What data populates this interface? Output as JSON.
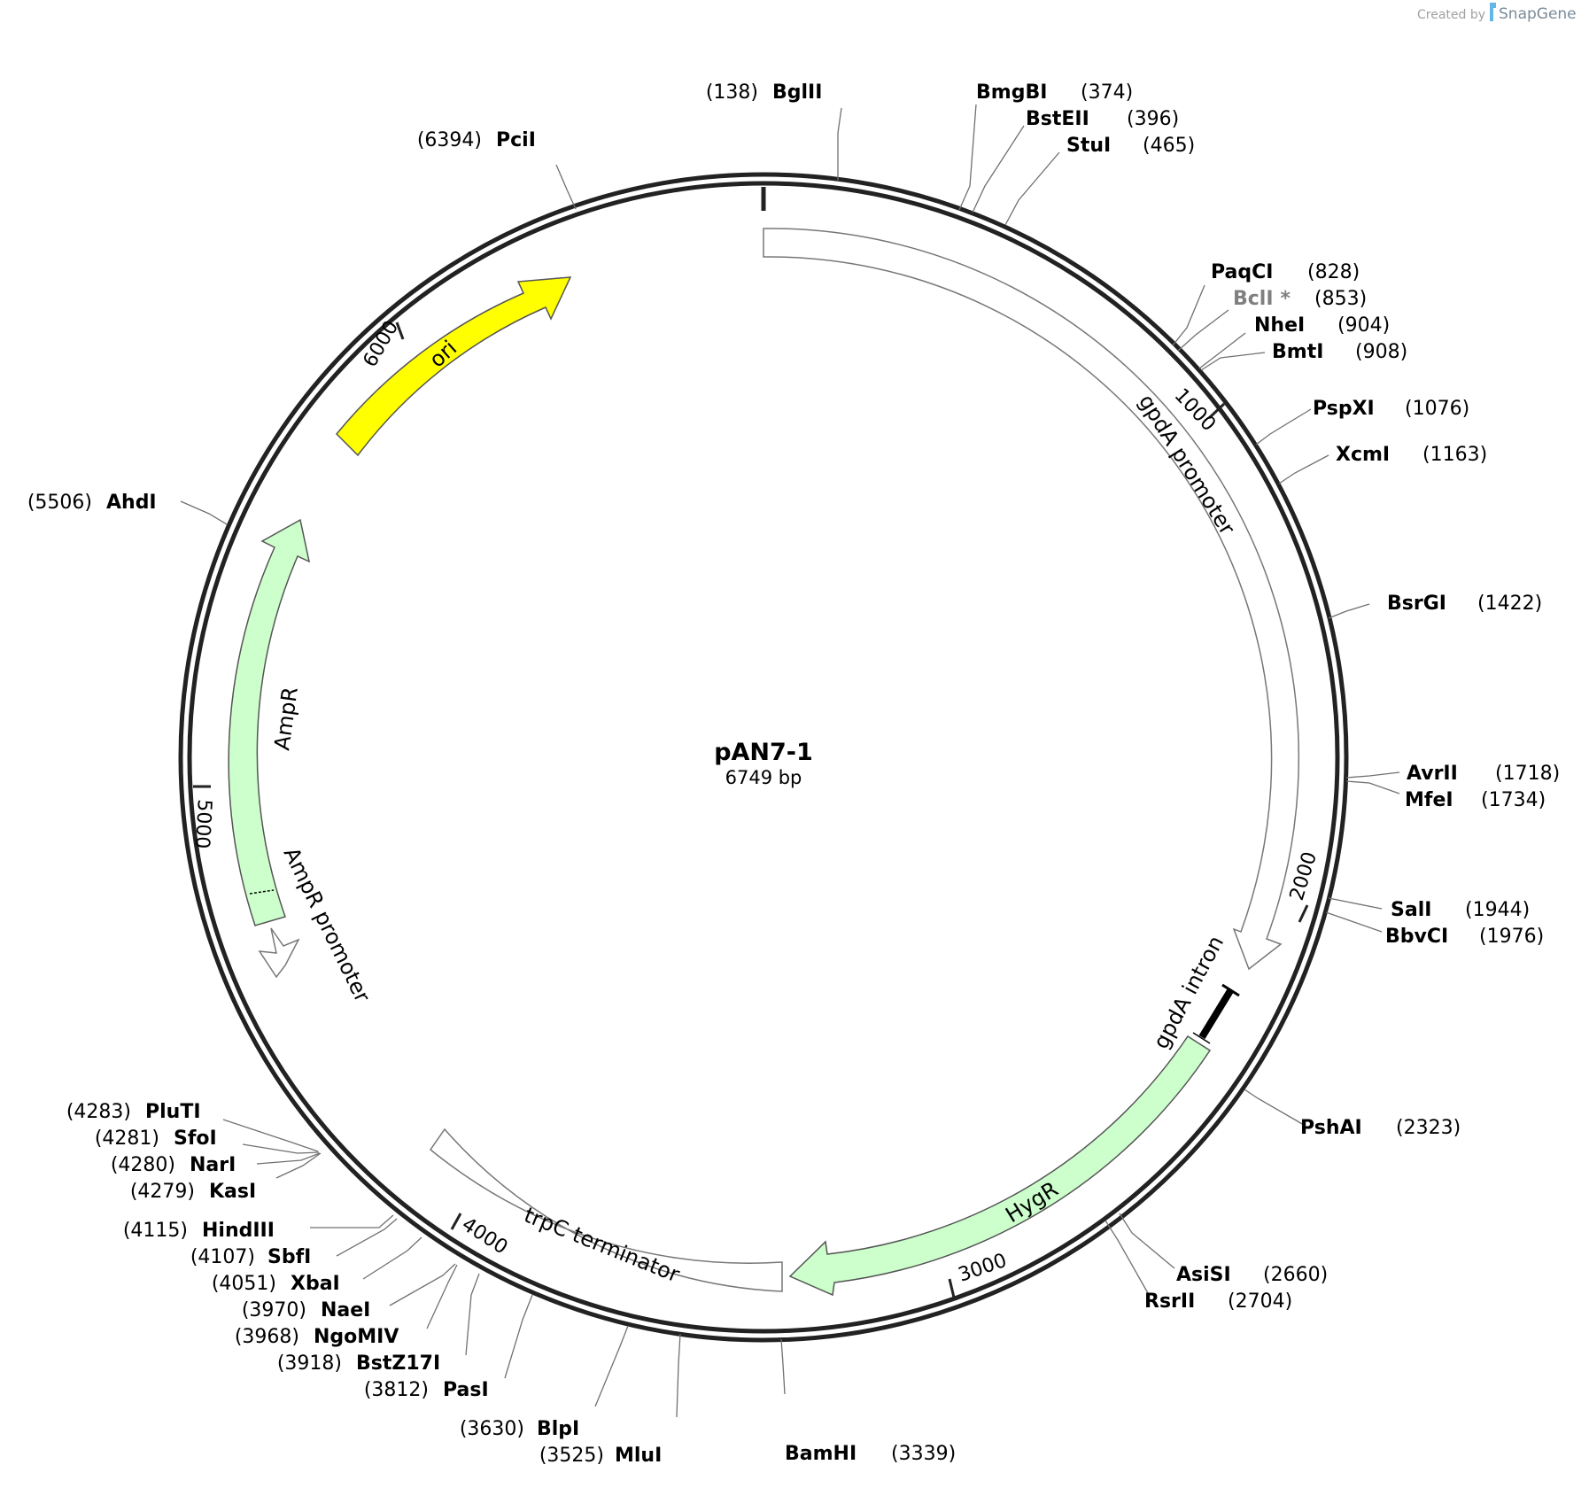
{
  "credit": {
    "prefix": "Created by",
    "brand": "SnapGene"
  },
  "plasmid": {
    "name": "pAN7-1",
    "length_label": "6749 bp",
    "length": 6749
  },
  "ticks": [
    {
      "bp": 1000,
      "label": "1000"
    },
    {
      "bp": 2000,
      "label": "2000"
    },
    {
      "bp": 3000,
      "label": "3000"
    },
    {
      "bp": 4000,
      "label": "4000"
    },
    {
      "bp": 5000,
      "label": "5000"
    },
    {
      "bp": 6000,
      "label": "6000"
    }
  ],
  "features": [
    {
      "name": "gpdA promoter",
      "type": "promoter",
      "color": "#ffffff",
      "stroke": "#777777"
    },
    {
      "name": "gpdA intron",
      "type": "intron",
      "color": "#000000"
    },
    {
      "name": "HygR",
      "type": "cds",
      "color": "#ccffcc",
      "stroke": "#6e8c6e"
    },
    {
      "name": "trpC terminator",
      "type": "terminator",
      "color": "#ffffff",
      "stroke": "#777777"
    },
    {
      "name": "AmpR promoter",
      "type": "promoter",
      "color": "#ffffff",
      "stroke": "#777777"
    },
    {
      "name": "AmpR",
      "type": "cds",
      "color": "#ccffcc",
      "stroke": "#6e8c6e"
    },
    {
      "name": "ori",
      "type": "rep_origin",
      "color": "#ffff00",
      "stroke": "#8c8c00"
    }
  ],
  "sites": [
    {
      "name": "BglII",
      "pos": "(138)"
    },
    {
      "name": "BmgBI",
      "pos": "(374)"
    },
    {
      "name": "BstEII",
      "pos": "(396)"
    },
    {
      "name": "StuI",
      "pos": "(465)"
    },
    {
      "name": "PaqCI",
      "pos": "(828)"
    },
    {
      "name": "BclI",
      "suffix": "*",
      "pos": "(853)",
      "grey": true
    },
    {
      "name": "NheI",
      "pos": "(904)"
    },
    {
      "name": "BmtI",
      "pos": "(908)"
    },
    {
      "name": "PspXI",
      "pos": "(1076)"
    },
    {
      "name": "XcmI",
      "pos": "(1163)"
    },
    {
      "name": "BsrGI",
      "pos": "(1422)"
    },
    {
      "name": "AvrII",
      "pos": "(1718)"
    },
    {
      "name": "MfeI",
      "pos": "(1734)"
    },
    {
      "name": "SalI",
      "pos": "(1944)"
    },
    {
      "name": "BbvCI",
      "pos": "(1976)"
    },
    {
      "name": "PshAI",
      "pos": "(2323)"
    },
    {
      "name": "AsiSI",
      "pos": "(2660)"
    },
    {
      "name": "RsrII",
      "pos": "(2704)"
    },
    {
      "name": "BamHI",
      "pos": "(3339)"
    },
    {
      "name": "MluI",
      "pos": "(3525)"
    },
    {
      "name": "BlpI",
      "pos": "(3630)"
    },
    {
      "name": "PasI",
      "pos": "(3812)"
    },
    {
      "name": "BstZ17I",
      "pos": "(3918)"
    },
    {
      "name": "NgoMIV",
      "pos": "(3968)"
    },
    {
      "name": "NaeI",
      "pos": "(3970)"
    },
    {
      "name": "XbaI",
      "pos": "(4051)"
    },
    {
      "name": "SbfI",
      "pos": "(4107)"
    },
    {
      "name": "HindIII",
      "pos": "(4115)"
    },
    {
      "name": "KasI",
      "pos": "(4279)"
    },
    {
      "name": "NarI",
      "pos": "(4280)"
    },
    {
      "name": "SfoI",
      "pos": "(4281)"
    },
    {
      "name": "PluTI",
      "pos": "(4283)"
    },
    {
      "name": "AhdI",
      "pos": "(5506)"
    },
    {
      "name": "PciI",
      "pos": "(6394)"
    }
  ]
}
